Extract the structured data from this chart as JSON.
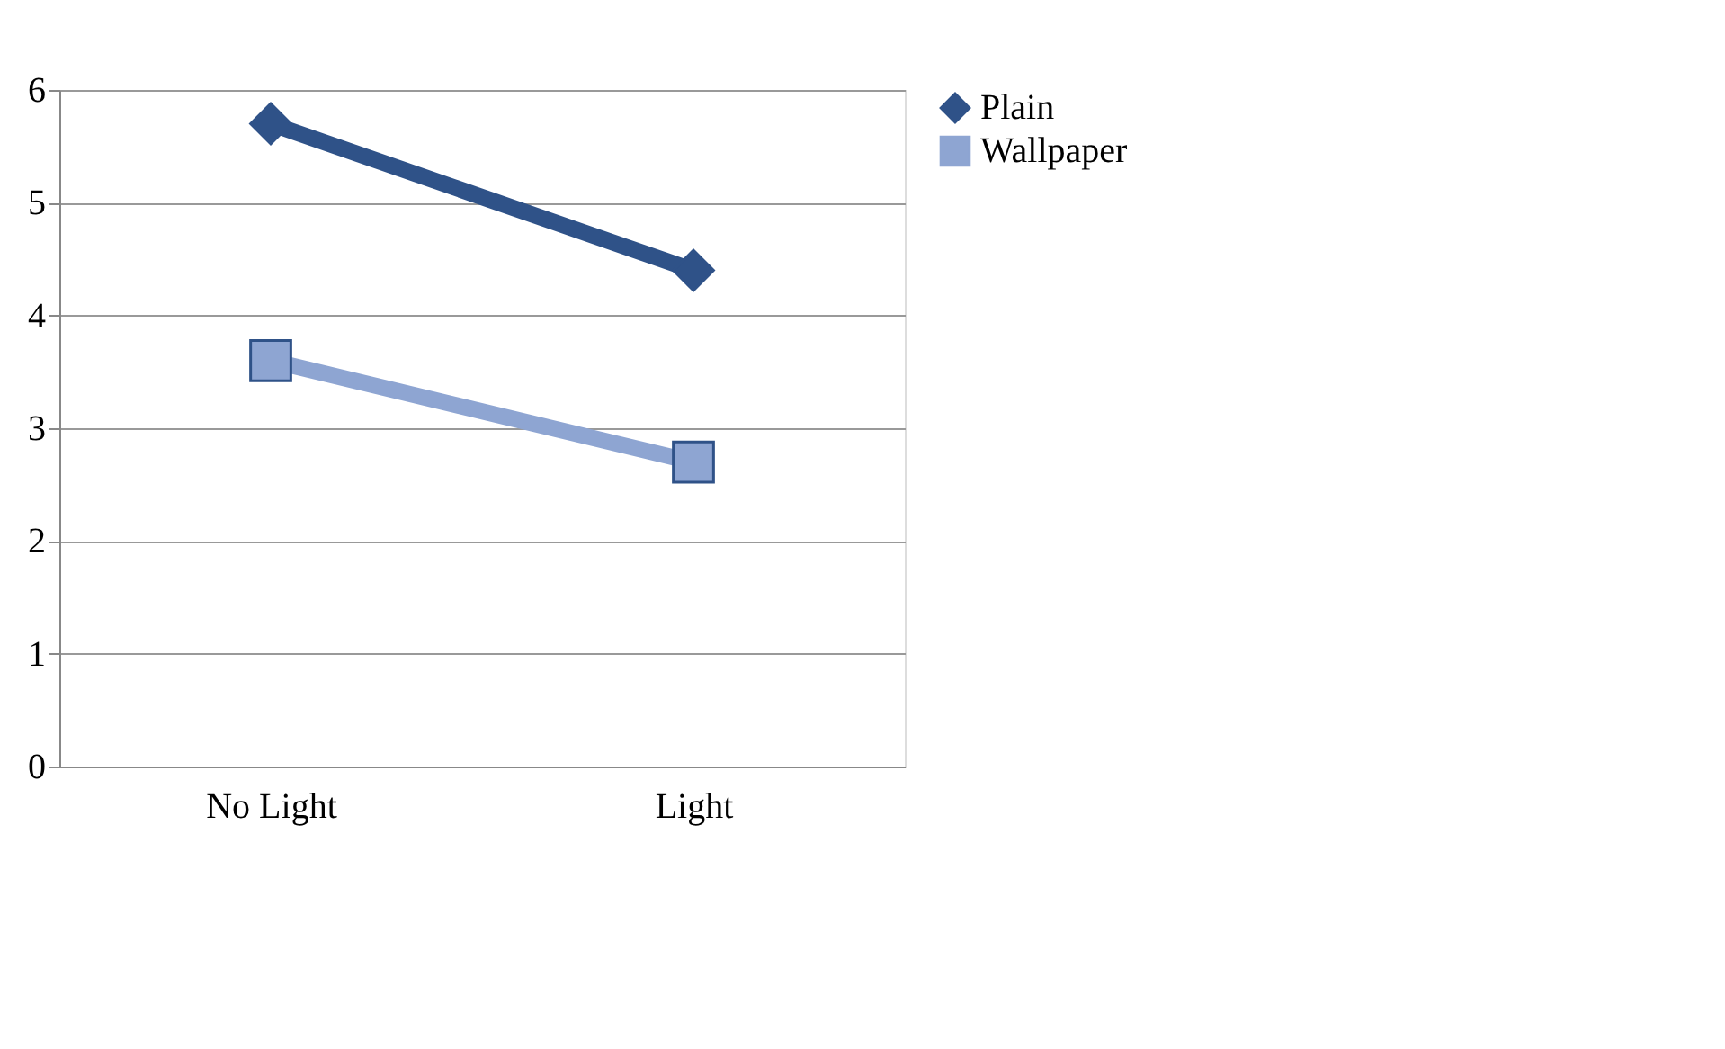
{
  "chart_data": {
    "type": "line",
    "categories": [
      "No Light",
      "Light"
    ],
    "series": [
      {
        "name": "Plain",
        "color": "#2f5288",
        "marker": "diamond",
        "values": [
          5.7,
          4.4
        ]
      },
      {
        "name": "Wallpaper",
        "color": "#8ea5d2",
        "marker": "square",
        "values": [
          3.6,
          2.7
        ]
      }
    ],
    "ylim": [
      0,
      6
    ],
    "yticks": [
      0,
      1,
      2,
      3,
      4,
      5,
      6
    ],
    "grid": "y",
    "legend": "right",
    "line_style": "solid"
  }
}
